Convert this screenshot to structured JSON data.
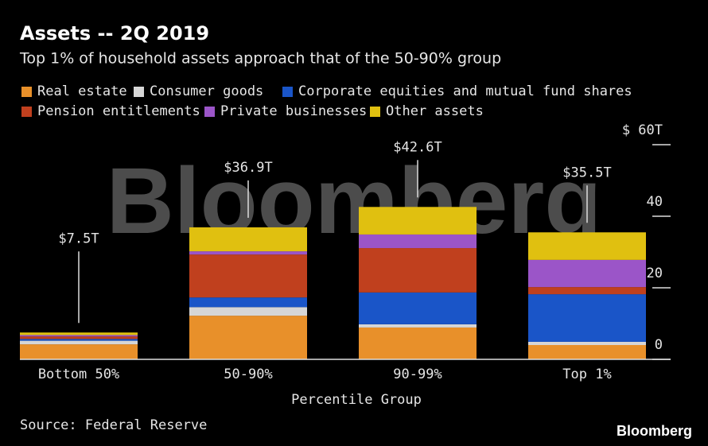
{
  "chart_data": {
    "type": "stacked_bar",
    "title": "Assets -- 2Q 2019",
    "subtitle": "Top 1% of household assets approach that of the 50-90% group",
    "x_label": "Percentile Group",
    "source": "Source: Federal Reserve",
    "watermark": "Bloomberg",
    "logo": "Bloomberg",
    "categories": [
      "Bottom 50%",
      "50-90%",
      "90-99%",
      "Top 1%"
    ],
    "series": [
      {
        "name": "Real estate",
        "color": "#e8902a",
        "values": [
          4.2,
          12.2,
          8.9,
          4.0
        ]
      },
      {
        "name": "Consumer goods",
        "color": "#d6d6d6",
        "values": [
          1.0,
          2.4,
          0.9,
          0.9
        ]
      },
      {
        "name": "Corporate equities and mutual fund shares",
        "color": "#1a55c8",
        "values": [
          0.5,
          2.7,
          8.9,
          13.3
        ]
      },
      {
        "name": "Pension entitlements",
        "color": "#c0401e",
        "values": [
          0.7,
          12.0,
          12.4,
          2.0
        ]
      },
      {
        "name": "Private businesses",
        "color": "#9b55c8",
        "values": [
          0.4,
          0.9,
          3.8,
          7.6
        ]
      },
      {
        "name": "Other assets",
        "color": "#e0c010",
        "values": [
          0.7,
          6.7,
          7.7,
          7.7
        ]
      }
    ],
    "totals": [
      {
        "value": 7.5,
        "label": "$7.5T"
      },
      {
        "value": 36.9,
        "label": "$36.9T"
      },
      {
        "value": 42.6,
        "label": "$42.6T"
      },
      {
        "value": 35.5,
        "label": "$35.5T"
      }
    ],
    "ylim": [
      0,
      60
    ],
    "yticks": [
      0,
      20,
      40,
      {
        "value": 60,
        "label": "$ 60T"
      }
    ]
  }
}
